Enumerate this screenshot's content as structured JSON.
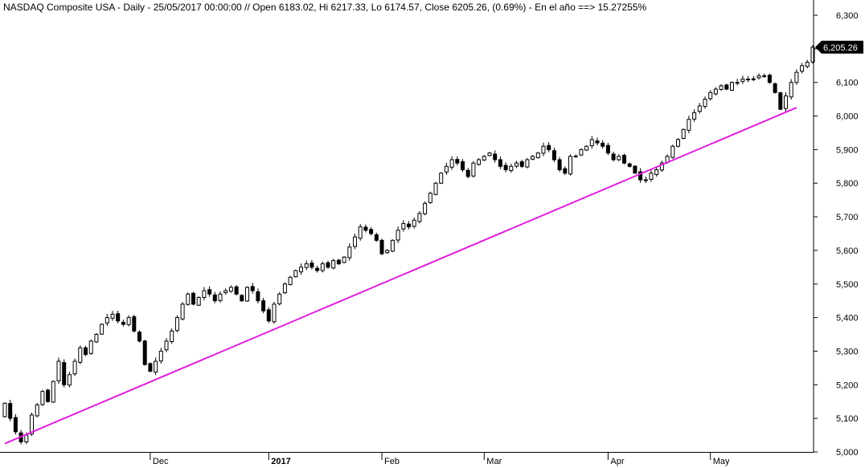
{
  "chart_data": {
    "type": "candlestick",
    "title": "NASDAQ Composite USA - Daily - 25/05/2017 00:00:00 // Open 6183.02, Hi 6217.33, Lo 6174.57, Close 6205.26, (0.69%) - En el año ==> 15.27255%",
    "ylim": [
      5000,
      6300
    ],
    "y_ticks": [
      {
        "value": 5000,
        "label": "5,000"
      },
      {
        "value": 5100,
        "label": "5,100"
      },
      {
        "value": 5200,
        "label": "5,200"
      },
      {
        "value": 5300,
        "label": "5,300"
      },
      {
        "value": 5400,
        "label": "5,400"
      },
      {
        "value": 5500,
        "label": "5,500"
      },
      {
        "value": 5600,
        "label": "5,600"
      },
      {
        "value": 5700,
        "label": "5,700"
      },
      {
        "value": 5800,
        "label": "5,800"
      },
      {
        "value": 5900,
        "label": "5,900"
      },
      {
        "value": 6000,
        "label": "6,000"
      },
      {
        "value": 6100,
        "label": "6,100"
      },
      {
        "value": 6200,
        "label": "6,200"
      },
      {
        "value": 6300,
        "label": "6,300"
      }
    ],
    "x_ticks": [
      {
        "index": 27,
        "label": "Dec",
        "bold": false
      },
      {
        "index": 49,
        "label": "2017",
        "bold": true
      },
      {
        "index": 70,
        "label": "Feb",
        "bold": false
      },
      {
        "index": 89,
        "label": "Mar",
        "bold": false
      },
      {
        "index": 112,
        "label": "Apr",
        "bold": false
      },
      {
        "index": 131,
        "label": "May",
        "bold": false
      }
    ],
    "last_close_label": "6,205.26",
    "trendline": {
      "start": {
        "index": 0,
        "value": 5025
      },
      "end": {
        "index": 147,
        "value": 6025
      },
      "color": "#e020e0"
    },
    "bull_color": "#ffffff",
    "bear_color": "#000000",
    "closes": [
      5145,
      5100,
      5060,
      5030,
      5050,
      5110,
      5140,
      5180,
      5150,
      5210,
      5270,
      5200,
      5230,
      5270,
      5310,
      5290,
      5330,
      5350,
      5380,
      5400,
      5410,
      5390,
      5380,
      5400,
      5360,
      5330,
      5260,
      5240,
      5270,
      5300,
      5330,
      5360,
      5400,
      5440,
      5470,
      5440,
      5460,
      5480,
      5470,
      5450,
      5470,
      5480,
      5490,
      5470,
      5450,
      5490,
      5480,
      5450,
      5420,
      5390,
      5440,
      5470,
      5500,
      5520,
      5540,
      5550,
      5560,
      5550,
      5540,
      5560,
      5550,
      5570,
      5560,
      5580,
      5610,
      5640,
      5670,
      5660,
      5650,
      5630,
      5590,
      5600,
      5630,
      5660,
      5680,
      5670,
      5690,
      5710,
      5740,
      5770,
      5800,
      5830,
      5850,
      5870,
      5860,
      5840,
      5820,
      5860,
      5870,
      5880,
      5890,
      5870,
      5850,
      5840,
      5850,
      5860,
      5850,
      5870,
      5880,
      5890,
      5910,
      5900,
      5870,
      5840,
      5830,
      5880,
      5880,
      5900,
      5910,
      5930,
      5920,
      5910,
      5890,
      5870,
      5880,
      5860,
      5850,
      5830,
      5810,
      5810,
      5830,
      5840,
      5860,
      5880,
      5910,
      5930,
      5960,
      5990,
      6010,
      6030,
      6050,
      6070,
      6080,
      6090,
      6080,
      6100,
      6100,
      6110,
      6110,
      6110,
      6120,
      6120,
      6100,
      6070,
      6020,
      6060,
      6100,
      6130,
      6150,
      6160,
      6205
    ]
  }
}
